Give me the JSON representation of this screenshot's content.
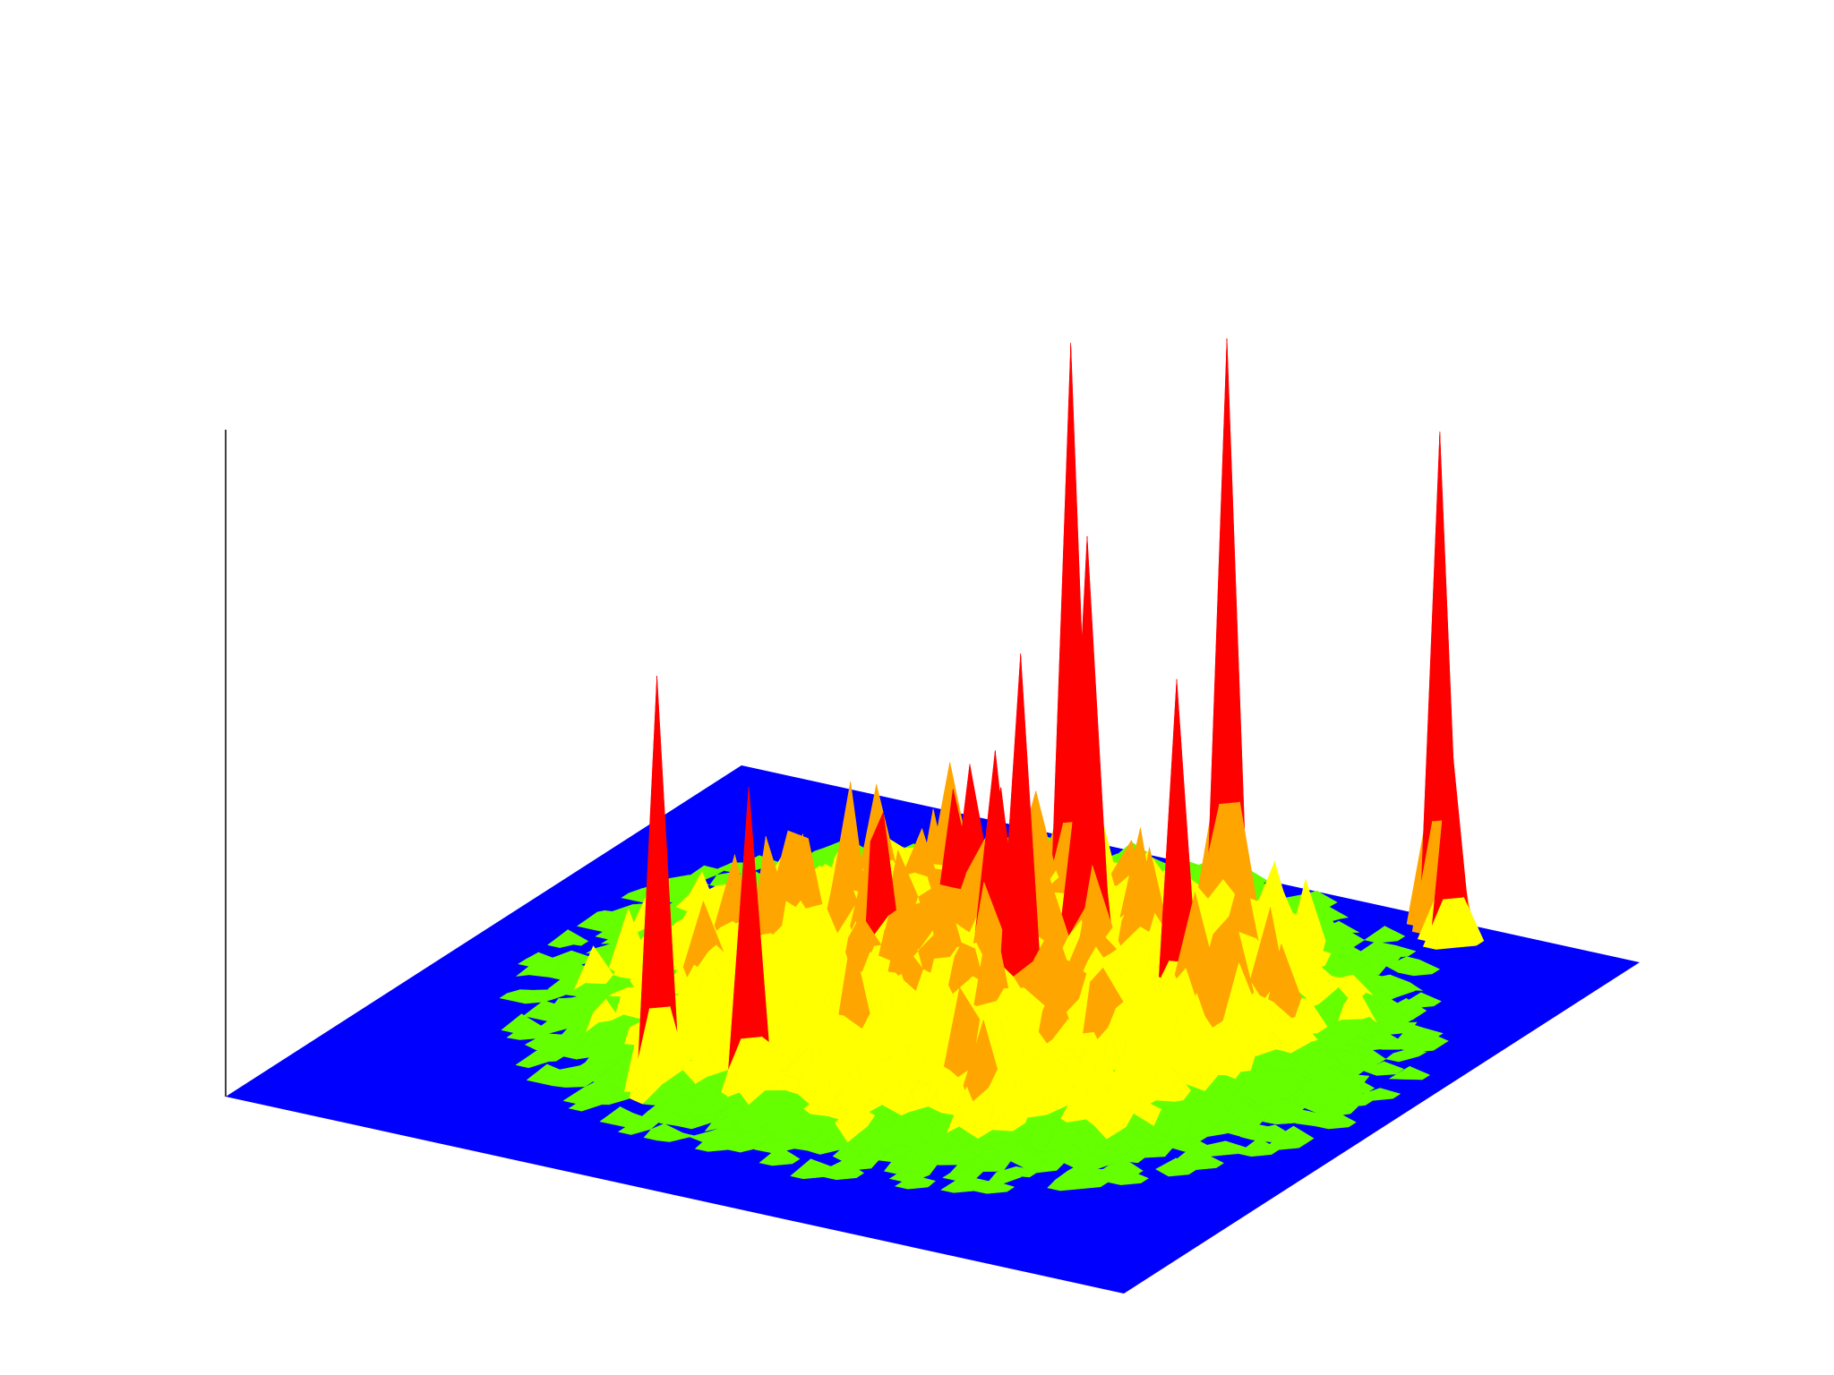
{
  "chart_data": {
    "type": "surface",
    "title": "",
    "xlabel": "",
    "ylabel": "",
    "zlabel": "",
    "grid": false,
    "legend": "none",
    "z_range": [
      0,
      1
    ],
    "base_level": 0,
    "colors": {
      "base": "#0000ff",
      "low": "#66ff00",
      "mid": "#ffff00",
      "high_mid": "#ffa500",
      "high": "#ff0000",
      "axis_line": "#000000"
    },
    "peaks": [
      {
        "u": 0.36,
        "v": 0.22,
        "z": 0.69
      },
      {
        "u": 0.44,
        "v": 0.24,
        "z": 0.52
      },
      {
        "u": 0.62,
        "v": 0.47,
        "z": 0.67
      },
      {
        "u": 0.72,
        "v": 0.6,
        "z": 0.59
      },
      {
        "u": 0.52,
        "v": 0.74,
        "z": 1.0
      },
      {
        "u": 0.55,
        "v": 0.7,
        "z": 0.72
      },
      {
        "u": 0.62,
        "v": 0.87,
        "z": 0.97
      },
      {
        "u": 0.78,
        "v": 0.98,
        "z": 0.81
      },
      {
        "u": 0.81,
        "v": 0.95,
        "z": 0.34
      }
    ]
  }
}
